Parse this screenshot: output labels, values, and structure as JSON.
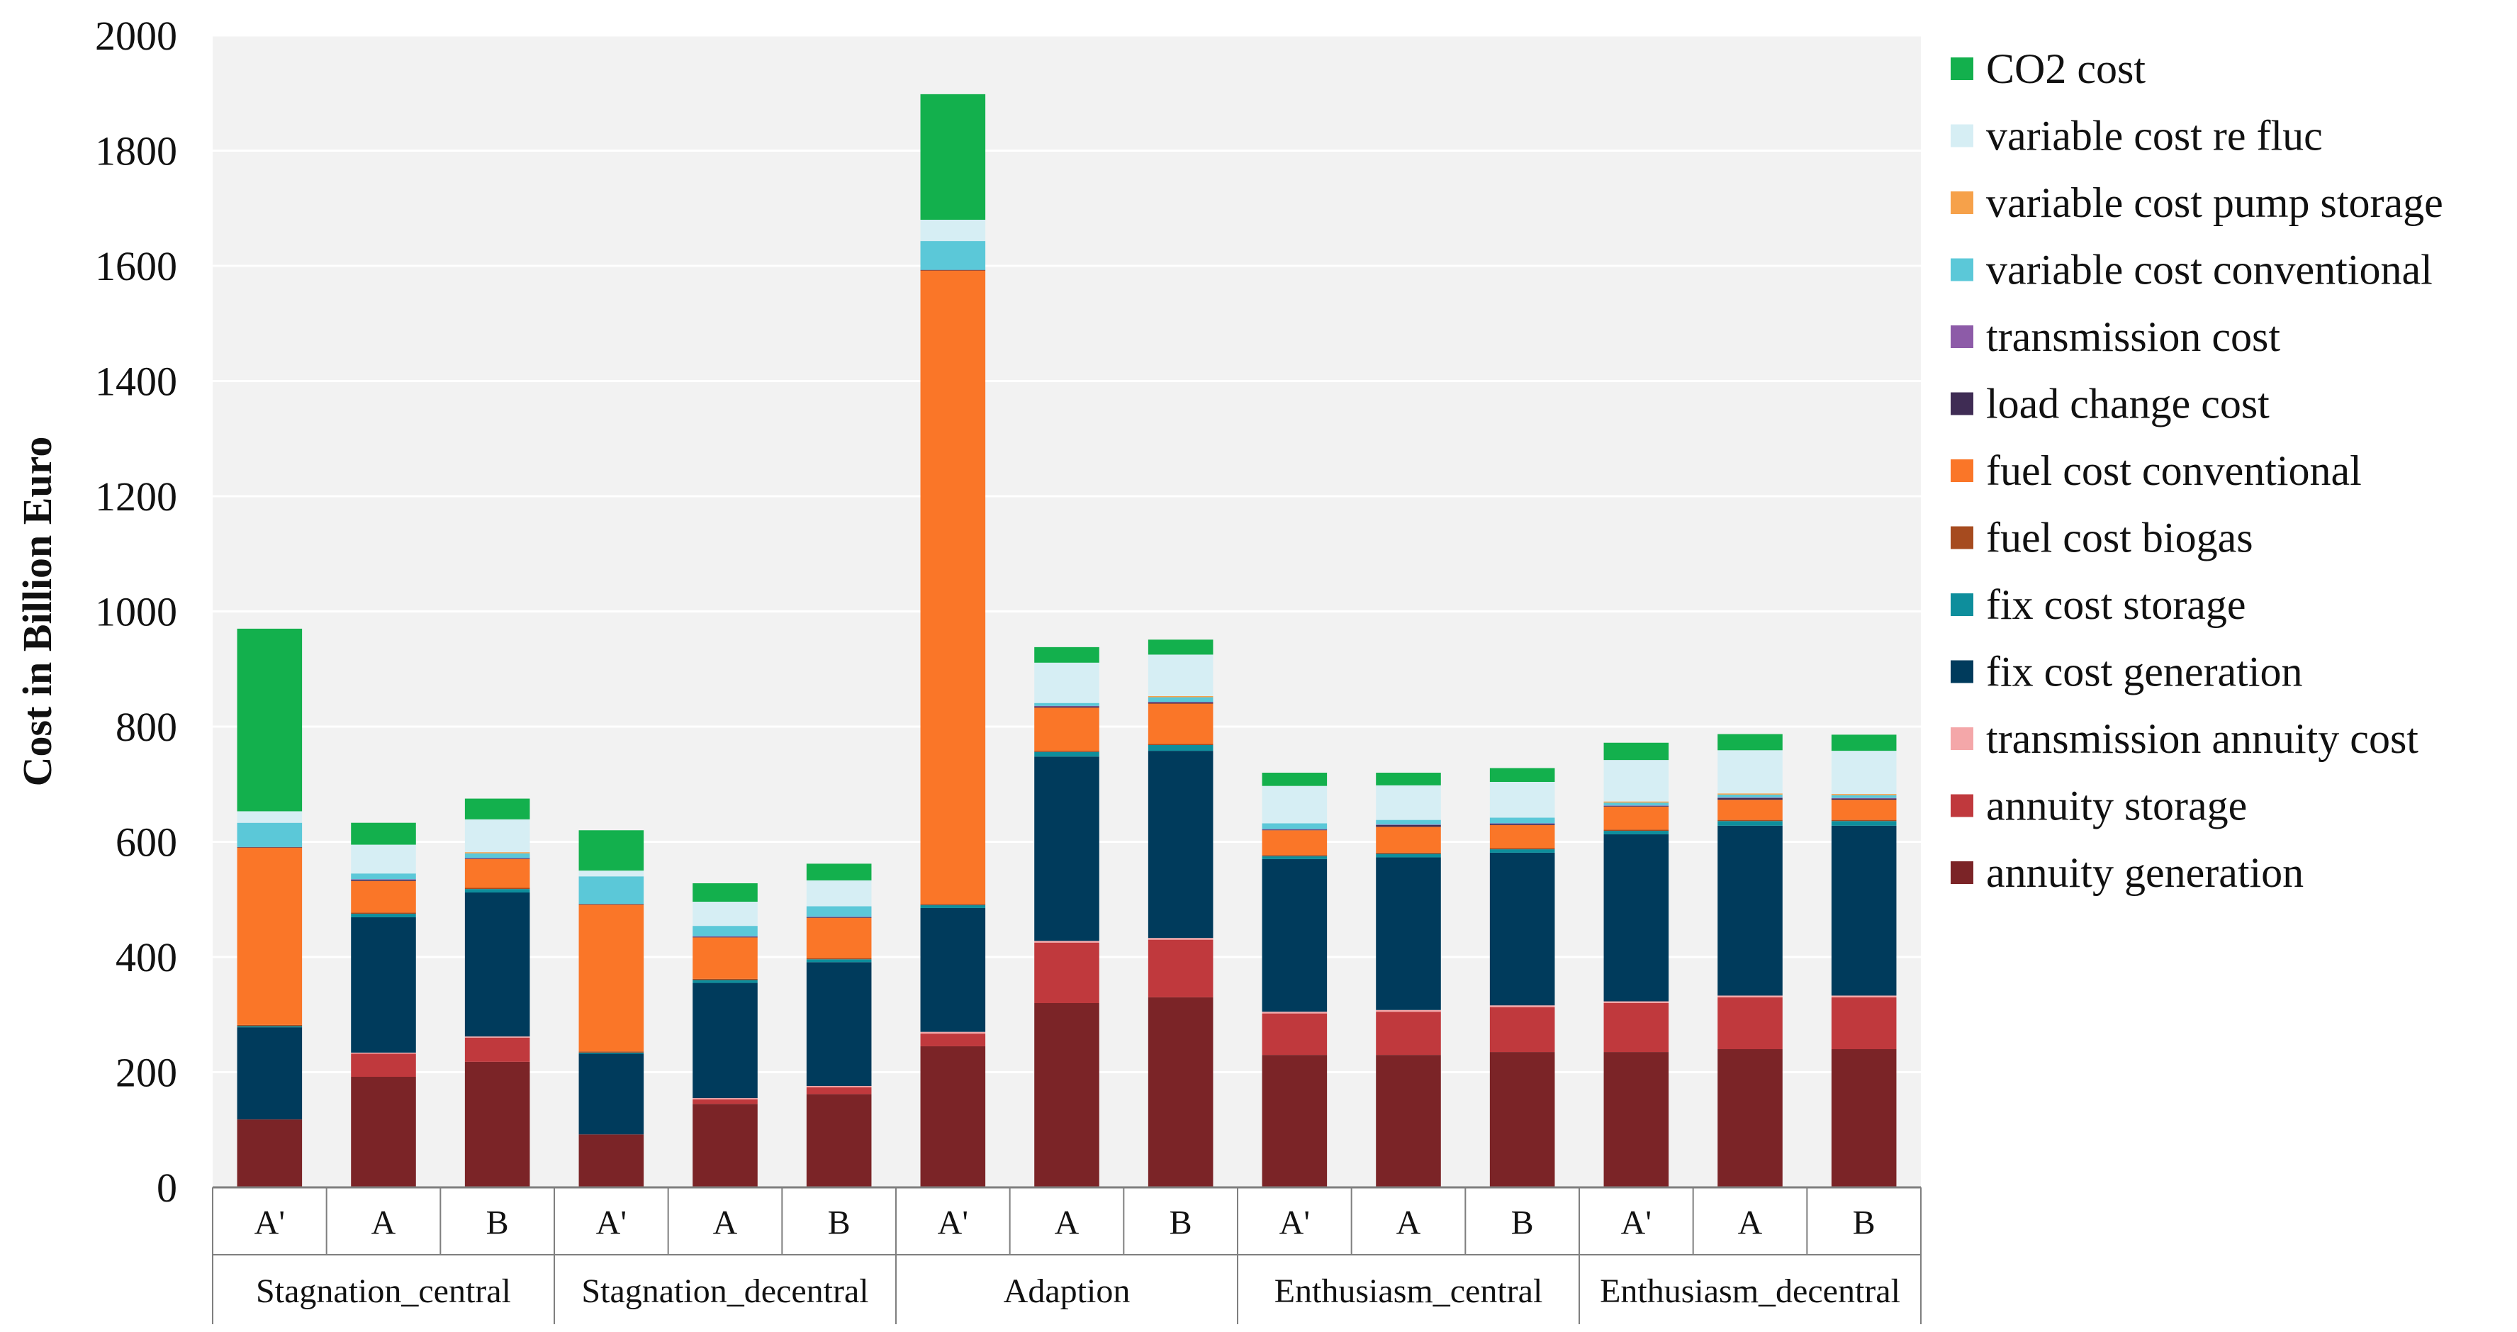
{
  "chart_data": {
    "type": "bar",
    "stacked": true,
    "title": "",
    "xlabel": "",
    "ylabel": "Cost in Billion Euro",
    "ylim": [
      0,
      2000
    ],
    "yticks": [
      0,
      200,
      400,
      600,
      800,
      1000,
      1200,
      1400,
      1600,
      1800,
      2000
    ],
    "grid": true,
    "legend_position": "right",
    "groups": [
      {
        "name": "Stagnation_central",
        "categories": [
          "A'",
          "A",
          "B"
        ]
      },
      {
        "name": "Stagnation_decentral",
        "categories": [
          "A'",
          "A",
          "B"
        ]
      },
      {
        "name": "Adaption",
        "categories": [
          "A'",
          "A",
          "B"
        ]
      },
      {
        "name": "Enthusiasm_central",
        "categories": [
          "A'",
          "A",
          "B"
        ]
      },
      {
        "name": "Enthusiasm_decentral",
        "categories": [
          "A'",
          "A",
          "B"
        ]
      }
    ],
    "series": [
      {
        "name": "annuity generation",
        "color": "#7B2427",
        "values": [
          118,
          192,
          218,
          92,
          145,
          162,
          245,
          320,
          330,
          230,
          230,
          235,
          235,
          240,
          240
        ]
      },
      {
        "name": "annuity storage",
        "color": "#C0393D",
        "values": [
          0,
          40,
          42,
          0,
          8,
          12,
          22,
          105,
          100,
          72,
          75,
          78,
          85,
          90,
          90
        ]
      },
      {
        "name": "transmission annuity cost",
        "color": "#F4A7A9",
        "values": [
          0,
          2,
          2,
          0,
          2,
          2,
          3,
          3,
          3,
          3,
          3,
          3,
          3,
          3,
          3
        ]
      },
      {
        "name": "fix cost generation",
        "color": "#003B5C",
        "values": [
          160,
          235,
          250,
          140,
          200,
          215,
          215,
          320,
          325,
          265,
          265,
          265,
          290,
          295,
          295
        ]
      },
      {
        "name": "fix cost storage",
        "color": "#0E8E9C",
        "values": [
          2,
          6,
          6,
          2,
          5,
          5,
          5,
          8,
          10,
          5,
          6,
          6,
          6,
          8,
          8
        ]
      },
      {
        "name": "fuel cost biogas",
        "color": "#A64B1F",
        "values": [
          2,
          2,
          2,
          2,
          2,
          2,
          2,
          2,
          2,
          2,
          2,
          2,
          2,
          2,
          2
        ]
      },
      {
        "name": "fuel cost conventional",
        "color": "#FA7628",
        "values": [
          308,
          55,
          50,
          255,
          72,
          70,
          1100,
          75,
          70,
          43,
          45,
          40,
          40,
          35,
          35
        ]
      },
      {
        "name": "load change cost",
        "color": "#3F2C54",
        "values": [
          1,
          2,
          1,
          1,
          1,
          1,
          1,
          2,
          2,
          1,
          3,
          2,
          1,
          3,
          2
        ]
      },
      {
        "name": "transmission cost",
        "color": "#8D5BA8",
        "values": [
          0,
          1,
          1,
          0,
          1,
          1,
          0,
          1,
          1,
          1,
          1,
          1,
          1,
          1,
          1
        ]
      },
      {
        "name": "variable cost conventional",
        "color": "#5BC8D8",
        "values": [
          42,
          10,
          8,
          48,
          18,
          18,
          50,
          5,
          8,
          10,
          8,
          10,
          5,
          5,
          5
        ]
      },
      {
        "name": "variable cost pump storage",
        "color": "#F6A14A",
        "values": [
          0,
          0,
          2,
          0,
          0,
          0,
          0,
          0,
          2,
          0,
          0,
          0,
          2,
          2,
          2
        ]
      },
      {
        "name": "variable cost re fluc",
        "color": "#D6EEF4",
        "values": [
          20,
          50,
          57,
          10,
          42,
          45,
          37,
          70,
          72,
          65,
          60,
          62,
          72,
          75,
          75
        ]
      },
      {
        "name": "CO2 cost",
        "color": "#13B04D",
        "values": [
          317,
          38,
          36,
          70,
          32,
          29,
          218,
          27,
          26,
          23,
          22,
          24,
          30,
          28,
          28
        ]
      }
    ],
    "legend": [
      "CO2 cost",
      "variable cost re fluc",
      "variable cost pump storage",
      "variable cost conventional",
      "transmission cost",
      "load change cost",
      "fuel cost conventional",
      "fuel cost biogas",
      "fix cost storage",
      "fix cost generation",
      "transmission annuity cost",
      "annuity storage",
      "annuity generation"
    ]
  }
}
